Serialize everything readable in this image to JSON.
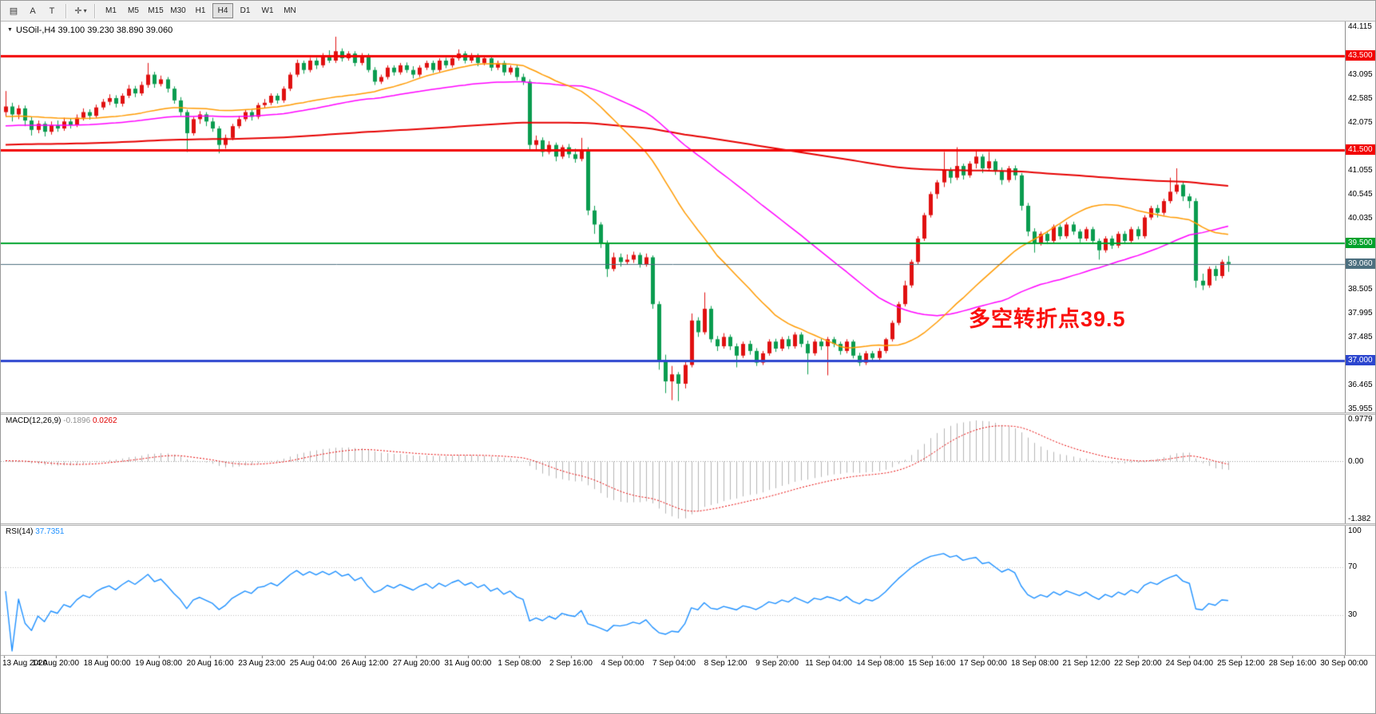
{
  "icons": {
    "title_arrow": "▼",
    "toolbar_caret": "▾"
  },
  "colors": {
    "up_candle": "#e01010",
    "down_candle": "#0a9c4f",
    "macd_hist": "#b4b4b4",
    "macd_signal": "#e60000",
    "rsi_line": "#1e90ff",
    "annotation": "#fa0f0c"
  },
  "toolbar": {
    "tool_buttons": [
      {
        "label": "▤"
      },
      {
        "label": "A"
      },
      {
        "label": "T"
      }
    ],
    "dropdown_glyph": "✛",
    "timeframes": [
      "M1",
      "M5",
      "M15",
      "M30",
      "H1",
      "H4",
      "D1",
      "W1",
      "MN"
    ],
    "active_timeframe": "H4"
  },
  "title": {
    "symbol_period": "USOil-,H4",
    "ohlc": "39.100 39.230 38.890 39.060"
  },
  "main_chart": {
    "annotation": {
      "text": "多空转折点39.5"
    }
  },
  "chart_data": {
    "type": "candlestick",
    "title": "USOil-,H4",
    "symbol": "USOil-",
    "timeframe": "H4",
    "current_bar": {
      "open": "39.100",
      "high": "39.230",
      "low": "38.890",
      "close": "39.060"
    },
    "ylim": [
      35.955,
      44.115
    ],
    "price_ticks": [
      "44.115",
      "43.095",
      "42.585",
      "42.075",
      "41.055",
      "40.545",
      "40.035",
      "38.505",
      "37.995",
      "37.485",
      "36.465",
      "35.955"
    ],
    "hlines": [
      {
        "price": 43.5,
        "label": "43.500",
        "color": "#f20000",
        "width": 3
      },
      {
        "price": 41.5,
        "label": "41.500",
        "color": "#f20000",
        "width": 3
      },
      {
        "price": 39.5,
        "label": "39.500",
        "color": "#00a22c",
        "width": 2
      },
      {
        "price": 39.06,
        "label": "39.060",
        "color": "#4c6f7f",
        "width": 1
      },
      {
        "price": 37.0,
        "label": "37.000",
        "color": "#2c46cf",
        "width": 3
      }
    ],
    "moving_averages": [
      {
        "name": "ma-long",
        "period": 200,
        "seed": 41.6,
        "color": "#e60000",
        "width": 2
      },
      {
        "name": "ma-mid",
        "period": 55,
        "seed": 42.0,
        "color": "#ff00ff",
        "width": 1.5
      },
      {
        "name": "ma-short",
        "period": 30,
        "seed": 42.2,
        "color": "#ff9a00",
        "width": 1.5
      }
    ],
    "time_labels": [
      "13 Aug 2020",
      "14 Aug 20:00",
      "18 Aug 00:00",
      "19 Aug 08:00",
      "20 Aug 16:00",
      "23 Aug 23:00",
      "25 Aug 04:00",
      "26 Aug 12:00",
      "27 Aug 20:00",
      "31 Aug 00:00",
      "1 Sep 08:00",
      "2 Sep 16:00",
      "4 Sep 00:00",
      "7 Sep 04:00",
      "8 Sep 12:00",
      "9 Sep 20:00",
      "11 Sep 04:00",
      "14 Sep 08:00",
      "15 Sep 16:00",
      "17 Sep 00:00",
      "18 Sep 08:00",
      "21 Sep 12:00",
      "22 Sep 20:00",
      "24 Sep 04:00",
      "25 Sep 12:00",
      "28 Sep 16:00",
      "30 Sep 00:00"
    ],
    "indicators": {
      "macd": {
        "label": "MACD(12,26,9)",
        "value_main": "-0.1896",
        "value_signal": "0.0262",
        "fast": 12,
        "slow": 26,
        "signal": 9,
        "axis_labels": {
          "top": "0.9779",
          "zero": "0.00",
          "bottom": "-1.382"
        }
      },
      "rsi": {
        "label": "RSI(14)",
        "value": "37.7351",
        "period": 14,
        "levels": [
          70,
          30
        ],
        "axis_labels": [
          "100",
          "70",
          "30"
        ]
      }
    },
    "candles": [
      [
        42.3,
        42.75,
        42.2,
        42.42
      ],
      [
        42.42,
        42.5,
        42.1,
        42.25
      ],
      [
        42.25,
        42.45,
        42.15,
        42.38
      ],
      [
        42.38,
        42.44,
        42.0,
        42.12
      ],
      [
        42.12,
        42.2,
        41.8,
        41.92
      ],
      [
        41.92,
        42.12,
        41.85,
        42.05
      ],
      [
        42.05,
        42.1,
        41.78,
        41.88
      ],
      [
        41.88,
        42.1,
        41.82,
        42.02
      ],
      [
        42.02,
        42.12,
        41.88,
        41.95
      ],
      [
        41.95,
        42.18,
        41.9,
        42.1
      ],
      [
        42.1,
        42.16,
        41.95,
        42.02
      ],
      [
        42.02,
        42.25,
        41.98,
        42.18
      ],
      [
        42.18,
        42.38,
        42.12,
        42.3
      ],
      [
        42.3,
        42.36,
        42.14,
        42.22
      ],
      [
        42.22,
        42.46,
        42.18,
        42.4
      ],
      [
        42.4,
        42.58,
        42.35,
        42.52
      ],
      [
        42.52,
        42.68,
        42.45,
        42.6
      ],
      [
        42.6,
        42.66,
        42.4,
        42.48
      ],
      [
        42.48,
        42.7,
        42.42,
        42.65
      ],
      [
        42.65,
        42.88,
        42.6,
        42.8
      ],
      [
        42.8,
        42.86,
        42.62,
        42.7
      ],
      [
        42.7,
        42.95,
        42.65,
        42.88
      ],
      [
        42.88,
        43.35,
        42.82,
        43.1
      ],
      [
        43.1,
        43.16,
        42.82,
        42.9
      ],
      [
        42.9,
        43.08,
        42.85,
        43.0
      ],
      [
        43.0,
        43.05,
        42.72,
        42.8
      ],
      [
        42.8,
        42.85,
        42.48,
        42.55
      ],
      [
        42.55,
        42.62,
        42.22,
        42.3
      ],
      [
        42.3,
        42.35,
        41.45,
        41.85
      ],
      [
        41.85,
        42.2,
        41.8,
        42.15
      ],
      [
        42.15,
        42.32,
        42.05,
        42.25
      ],
      [
        42.25,
        42.3,
        42.0,
        42.1
      ],
      [
        42.1,
        42.18,
        41.88,
        41.95
      ],
      [
        41.95,
        42.0,
        41.42,
        41.6
      ],
      [
        41.6,
        41.82,
        41.52,
        41.75
      ],
      [
        41.75,
        42.05,
        41.7,
        42.0
      ],
      [
        42.0,
        42.22,
        41.95,
        42.15
      ],
      [
        42.15,
        42.36,
        42.1,
        42.3
      ],
      [
        42.3,
        42.35,
        42.12,
        42.2
      ],
      [
        42.2,
        42.5,
        42.15,
        42.45
      ],
      [
        42.45,
        42.58,
        42.38,
        42.5
      ],
      [
        42.5,
        42.7,
        42.45,
        42.65
      ],
      [
        42.65,
        42.7,
        42.48,
        42.55
      ],
      [
        42.55,
        42.85,
        42.5,
        42.8
      ],
      [
        42.8,
        43.15,
        42.75,
        43.1
      ],
      [
        43.1,
        43.42,
        43.05,
        43.35
      ],
      [
        43.35,
        43.4,
        43.12,
        43.2
      ],
      [
        43.2,
        43.46,
        43.15,
        43.4
      ],
      [
        43.4,
        43.46,
        43.22,
        43.3
      ],
      [
        43.3,
        43.56,
        43.25,
        43.5
      ],
      [
        43.5,
        43.62,
        43.35,
        43.4
      ],
      [
        43.4,
        43.91,
        43.35,
        43.6
      ],
      [
        43.6,
        43.66,
        43.38,
        43.45
      ],
      [
        43.45,
        43.6,
        43.4,
        43.55
      ],
      [
        43.55,
        43.6,
        43.28,
        43.35
      ],
      [
        43.35,
        43.56,
        43.3,
        43.5
      ],
      [
        43.5,
        43.55,
        43.15,
        43.2
      ],
      [
        43.2,
        43.26,
        42.88,
        42.95
      ],
      [
        42.95,
        43.1,
        42.9,
        43.05
      ],
      [
        43.05,
        43.3,
        43.0,
        43.25
      ],
      [
        43.25,
        43.3,
        43.08,
        43.15
      ],
      [
        43.15,
        43.35,
        43.1,
        43.3
      ],
      [
        43.3,
        43.36,
        43.14,
        43.2
      ],
      [
        43.2,
        43.28,
        43.02,
        43.1
      ],
      [
        43.1,
        43.3,
        43.05,
        43.25
      ],
      [
        43.25,
        43.4,
        43.2,
        43.35
      ],
      [
        43.35,
        43.4,
        43.14,
        43.2
      ],
      [
        43.2,
        43.45,
        43.15,
        43.4
      ],
      [
        43.4,
        43.46,
        43.24,
        43.3
      ],
      [
        43.3,
        43.5,
        43.25,
        43.45
      ],
      [
        43.45,
        43.64,
        43.4,
        43.55
      ],
      [
        43.55,
        43.6,
        43.34,
        43.4
      ],
      [
        43.4,
        43.56,
        43.35,
        43.5
      ],
      [
        43.5,
        43.55,
        43.28,
        43.35
      ],
      [
        43.35,
        43.5,
        43.3,
        43.45
      ],
      [
        43.45,
        43.5,
        43.18,
        43.25
      ],
      [
        43.25,
        43.4,
        43.2,
        43.35
      ],
      [
        43.35,
        43.4,
        43.08,
        43.15
      ],
      [
        43.15,
        43.3,
        43.1,
        43.25
      ],
      [
        43.25,
        43.3,
        42.98,
        43.05
      ],
      [
        43.05,
        43.12,
        42.88,
        42.95
      ],
      [
        42.95,
        43.0,
        41.5,
        41.6
      ],
      [
        41.6,
        41.8,
        41.5,
        41.7
      ],
      [
        41.7,
        41.76,
        41.35,
        41.45
      ],
      [
        41.45,
        41.68,
        41.4,
        41.6
      ],
      [
        41.6,
        41.65,
        41.25,
        41.35
      ],
      [
        41.35,
        41.6,
        41.3,
        41.55
      ],
      [
        41.55,
        41.62,
        41.32,
        41.4
      ],
      [
        41.4,
        41.52,
        41.22,
        41.3
      ],
      [
        41.3,
        41.75,
        41.25,
        41.5
      ],
      [
        41.5,
        41.55,
        40.1,
        40.2
      ],
      [
        40.2,
        40.3,
        39.7,
        39.9
      ],
      [
        39.9,
        39.95,
        39.4,
        39.5
      ],
      [
        39.5,
        39.56,
        38.78,
        38.95
      ],
      [
        38.95,
        39.3,
        38.9,
        39.2
      ],
      [
        39.2,
        39.28,
        39.0,
        39.1
      ],
      [
        39.1,
        39.26,
        39.05,
        39.15
      ],
      [
        39.15,
        39.32,
        39.08,
        39.25
      ],
      [
        39.25,
        39.3,
        38.98,
        39.05
      ],
      [
        39.05,
        39.28,
        39.0,
        39.2
      ],
      [
        39.2,
        39.24,
        38.1,
        38.2
      ],
      [
        38.2,
        38.26,
        36.8,
        37.0
      ],
      [
        37.0,
        37.12,
        36.3,
        36.55
      ],
      [
        36.55,
        36.88,
        36.15,
        36.7
      ],
      [
        36.7,
        36.75,
        36.13,
        36.5
      ],
      [
        36.5,
        37.0,
        36.4,
        36.9
      ],
      [
        36.9,
        38.0,
        36.85,
        37.85
      ],
      [
        37.85,
        37.92,
        37.5,
        37.6
      ],
      [
        37.6,
        38.45,
        37.55,
        38.1
      ],
      [
        38.1,
        38.16,
        37.38,
        37.45
      ],
      [
        37.45,
        37.52,
        37.2,
        37.3
      ],
      [
        37.3,
        37.58,
        37.25,
        37.5
      ],
      [
        37.5,
        37.55,
        37.22,
        37.3
      ],
      [
        37.3,
        37.36,
        36.85,
        37.1
      ],
      [
        37.1,
        37.4,
        37.05,
        37.35
      ],
      [
        37.35,
        37.42,
        37.12,
        37.2
      ],
      [
        37.2,
        37.26,
        36.88,
        36.95
      ],
      [
        36.95,
        37.2,
        36.9,
        37.15
      ],
      [
        37.15,
        37.45,
        37.1,
        37.4
      ],
      [
        37.4,
        37.46,
        37.18,
        37.25
      ],
      [
        37.25,
        37.5,
        37.2,
        37.45
      ],
      [
        37.45,
        37.52,
        37.24,
        37.3
      ],
      [
        37.3,
        37.6,
        37.25,
        37.55
      ],
      [
        37.55,
        37.6,
        37.28,
        37.35
      ],
      [
        37.35,
        37.42,
        36.7,
        37.15
      ],
      [
        37.15,
        37.45,
        37.1,
        37.4
      ],
      [
        37.4,
        37.46,
        37.22,
        37.3
      ],
      [
        37.3,
        37.5,
        36.68,
        37.45
      ],
      [
        37.45,
        37.5,
        37.28,
        37.35
      ],
      [
        37.35,
        37.4,
        37.12,
        37.2
      ],
      [
        37.2,
        37.45,
        37.15,
        37.4
      ],
      [
        37.4,
        37.44,
        37.04,
        37.1
      ],
      [
        37.1,
        37.16,
        36.88,
        36.95
      ],
      [
        36.95,
        37.2,
        36.9,
        37.15
      ],
      [
        37.15,
        37.2,
        36.98,
        37.05
      ],
      [
        37.05,
        37.26,
        37.0,
        37.2
      ],
      [
        37.2,
        37.48,
        37.15,
        37.45
      ],
      [
        37.45,
        37.85,
        37.4,
        37.8
      ],
      [
        37.8,
        38.25,
        37.75,
        38.2
      ],
      [
        38.2,
        38.7,
        38.15,
        38.6
      ],
      [
        38.6,
        39.15,
        38.55,
        39.1
      ],
      [
        39.1,
        39.65,
        39.05,
        39.6
      ],
      [
        39.6,
        40.15,
        39.55,
        40.1
      ],
      [
        40.1,
        40.6,
        40.05,
        40.55
      ],
      [
        40.55,
        40.85,
        40.45,
        40.8
      ],
      [
        40.8,
        41.45,
        40.7,
        41.05
      ],
      [
        41.05,
        41.12,
        40.78,
        40.9
      ],
      [
        40.9,
        41.55,
        40.85,
        41.15
      ],
      [
        41.15,
        41.2,
        40.86,
        40.95
      ],
      [
        40.95,
        41.25,
        40.9,
        41.2
      ],
      [
        41.2,
        41.5,
        41.1,
        41.35
      ],
      [
        41.35,
        41.4,
        41.0,
        41.1
      ],
      [
        41.1,
        41.45,
        41.05,
        41.25
      ],
      [
        41.25,
        41.3,
        40.96,
        41.05
      ],
      [
        41.05,
        41.12,
        40.75,
        40.85
      ],
      [
        40.85,
        41.15,
        40.8,
        41.1
      ],
      [
        41.1,
        41.16,
        40.85,
        40.95
      ],
      [
        40.95,
        41.0,
        40.2,
        40.3
      ],
      [
        40.3,
        40.36,
        39.65,
        39.75
      ],
      [
        39.75,
        39.82,
        39.3,
        39.5
      ],
      [
        39.5,
        39.75,
        39.45,
        39.7
      ],
      [
        39.7,
        39.76,
        39.48,
        39.55
      ],
      [
        39.55,
        39.9,
        39.5,
        39.85
      ],
      [
        39.85,
        39.9,
        39.58,
        39.65
      ],
      [
        39.65,
        39.95,
        39.6,
        39.9
      ],
      [
        39.9,
        39.96,
        39.68,
        39.75
      ],
      [
        39.75,
        39.8,
        39.52,
        39.6
      ],
      [
        39.6,
        39.85,
        39.55,
        39.8
      ],
      [
        39.8,
        39.85,
        39.48,
        39.55
      ],
      [
        39.55,
        39.6,
        39.15,
        39.35
      ],
      [
        39.35,
        39.65,
        39.3,
        39.6
      ],
      [
        39.6,
        39.66,
        39.38,
        39.45
      ],
      [
        39.45,
        39.75,
        39.4,
        39.7
      ],
      [
        39.7,
        39.76,
        39.48,
        39.55
      ],
      [
        39.55,
        39.85,
        39.5,
        39.8
      ],
      [
        39.8,
        39.86,
        39.58,
        39.65
      ],
      [
        39.65,
        40.1,
        39.6,
        40.05
      ],
      [
        40.05,
        40.3,
        40.0,
        40.25
      ],
      [
        40.25,
        40.32,
        40.05,
        40.15
      ],
      [
        40.15,
        40.45,
        40.1,
        40.4
      ],
      [
        40.4,
        40.9,
        40.35,
        40.6
      ],
      [
        40.6,
        41.1,
        40.55,
        40.75
      ],
      [
        40.75,
        40.82,
        40.4,
        40.5
      ],
      [
        40.5,
        40.56,
        40.25,
        40.4
      ],
      [
        40.4,
        40.46,
        38.55,
        38.7
      ],
      [
        38.7,
        38.85,
        38.5,
        38.6
      ],
      [
        38.6,
        39.0,
        38.55,
        38.95
      ],
      [
        38.95,
        39.02,
        38.7,
        38.8
      ],
      [
        38.8,
        39.15,
        38.75,
        39.1
      ],
      [
        39.1,
        39.23,
        38.89,
        39.06
      ]
    ]
  }
}
